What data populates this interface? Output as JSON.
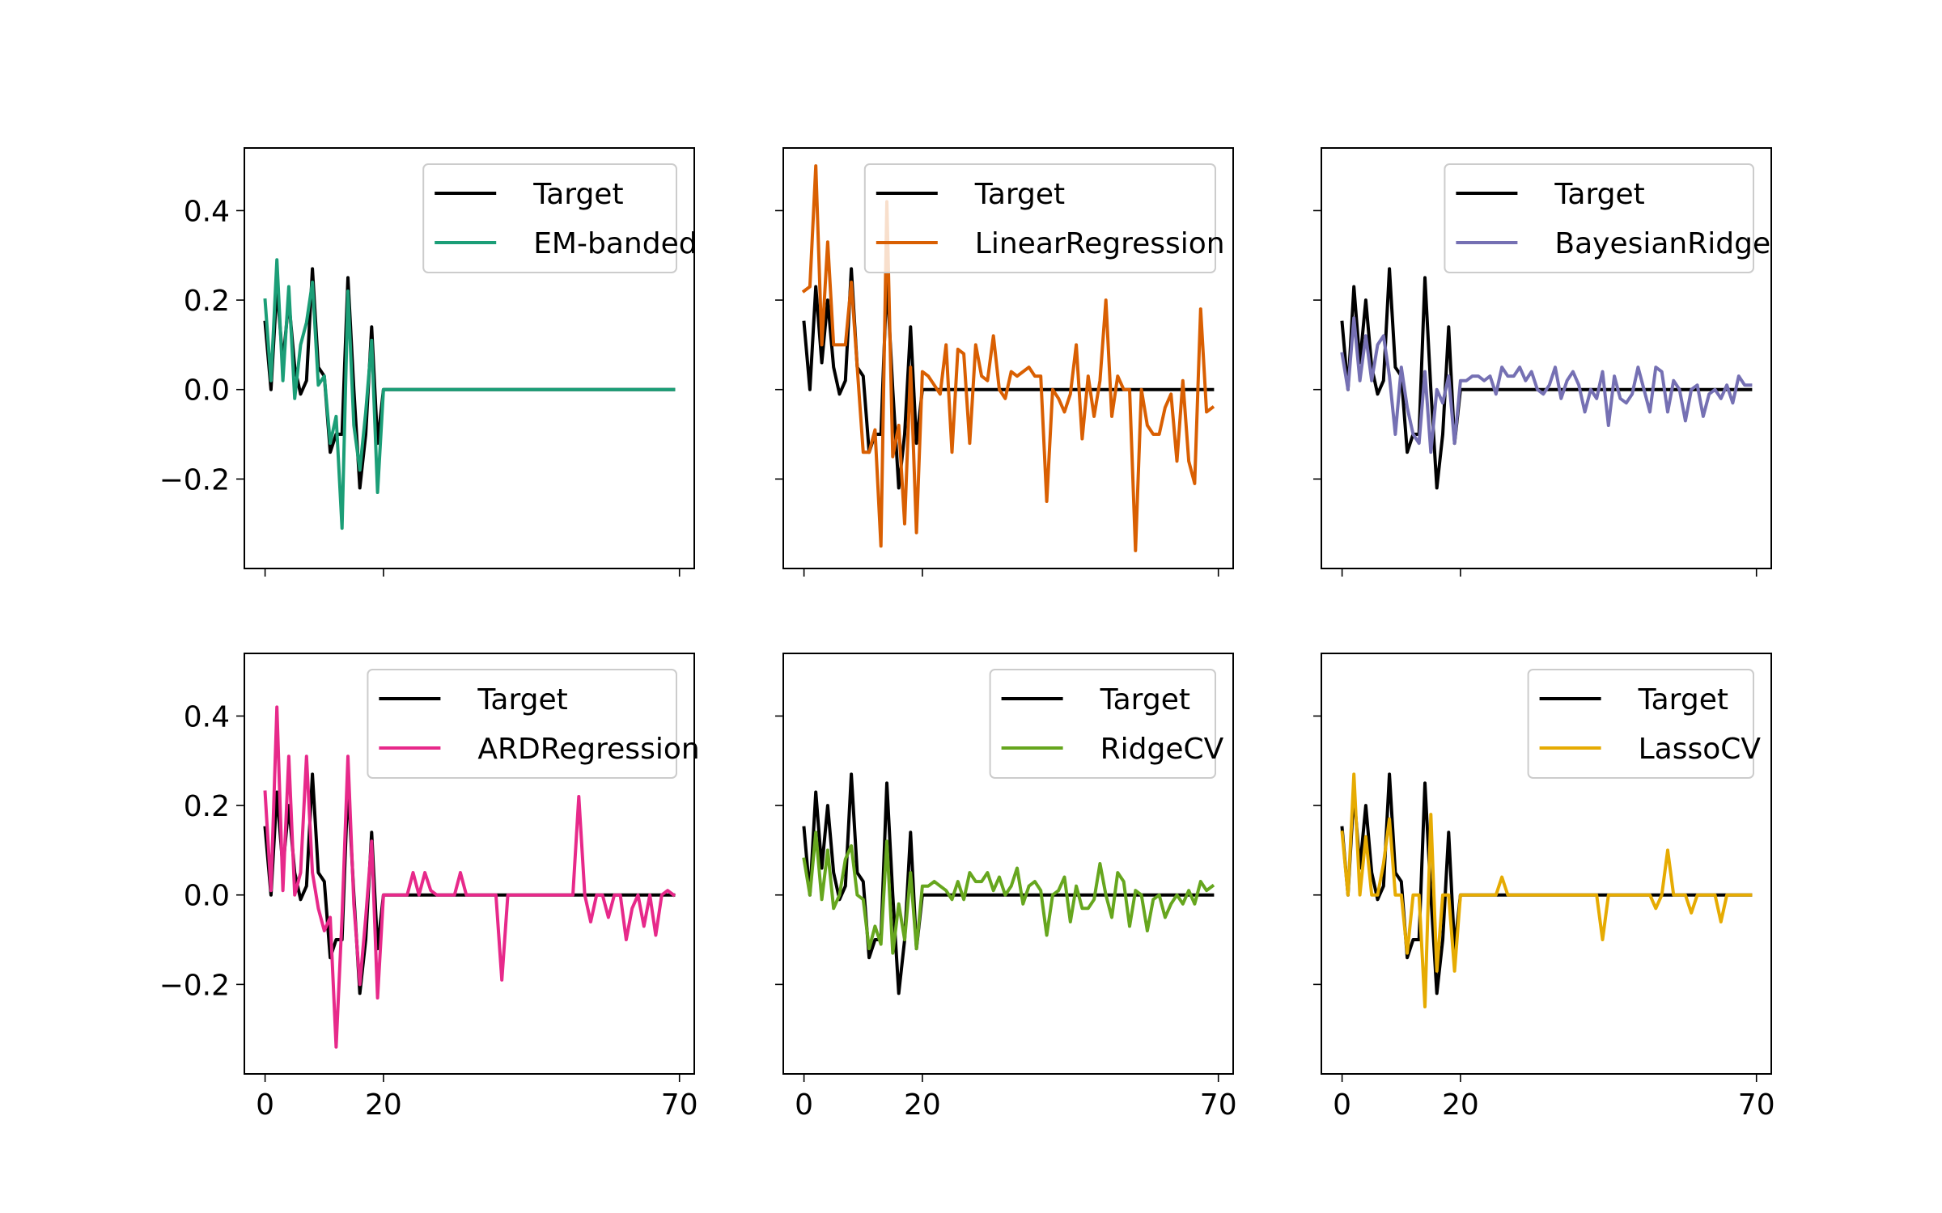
{
  "figure": {
    "colors": {
      "target": "#000000",
      "em_banded": "#1b9e77",
      "linear_regression": "#d95f02",
      "bayesian_ridge": "#7570b3",
      "ard_regression": "#e7298a",
      "ridge_cv": "#66a61e",
      "lasso_cv": "#e6ab02"
    }
  },
  "chart_data": [
    {
      "type": "line",
      "row": 0,
      "col": 0,
      "xlim": [
        -3.5,
        72.5
      ],
      "ylim": [
        -0.4,
        0.54
      ],
      "yticks": [
        -0.2,
        0.0,
        0.2,
        0.4
      ],
      "ytick_labels": [
        "−0.2",
        "0.0",
        "0.2",
        "0.4"
      ],
      "show_yticklabels": true,
      "xticks": [
        0,
        20,
        70
      ],
      "xtick_labels": [
        "0",
        "20",
        "70"
      ],
      "show_xticklabels": false,
      "legend_loc": "upper right",
      "series": [
        {
          "name": "Target",
          "color_key": "target"
        },
        {
          "name": "EM-banded",
          "color_key": "em_banded",
          "kind": "em"
        }
      ]
    },
    {
      "type": "line",
      "row": 0,
      "col": 1,
      "xlim": [
        -3.5,
        72.5
      ],
      "ylim": [
        -0.4,
        0.54
      ],
      "yticks": [
        -0.2,
        0.0,
        0.2,
        0.4
      ],
      "ytick_labels": [
        "−0.2",
        "0.0",
        "0.2",
        "0.4"
      ],
      "show_yticklabels": false,
      "xticks": [
        0,
        20,
        70
      ],
      "xtick_labels": [
        "0",
        "20",
        "70"
      ],
      "show_xticklabels": false,
      "legend_loc": "upper right",
      "series": [
        {
          "name": "Target",
          "color_key": "target"
        },
        {
          "name": "LinearRegression",
          "color_key": "linear_regression",
          "kind": "linear"
        }
      ]
    },
    {
      "type": "line",
      "row": 0,
      "col": 2,
      "xlim": [
        -3.5,
        72.5
      ],
      "ylim": [
        -0.4,
        0.54
      ],
      "yticks": [
        -0.2,
        0.0,
        0.2,
        0.4
      ],
      "ytick_labels": [
        "−0.2",
        "0.0",
        "0.2",
        "0.4"
      ],
      "show_yticklabels": false,
      "xticks": [
        0,
        20,
        70
      ],
      "xtick_labels": [
        "0",
        "20",
        "70"
      ],
      "show_xticklabels": false,
      "legend_loc": "upper right",
      "series": [
        {
          "name": "Target",
          "color_key": "target"
        },
        {
          "name": "BayesianRidge",
          "color_key": "bayesian_ridge",
          "kind": "bayes"
        }
      ]
    },
    {
      "type": "line",
      "row": 1,
      "col": 0,
      "xlim": [
        -3.5,
        72.5
      ],
      "ylim": [
        -0.4,
        0.54
      ],
      "yticks": [
        -0.2,
        0.0,
        0.2,
        0.4
      ],
      "ytick_labels": [
        "−0.2",
        "0.0",
        "0.2",
        "0.4"
      ],
      "show_yticklabels": true,
      "xticks": [
        0,
        20,
        70
      ],
      "xtick_labels": [
        "0",
        "20",
        "70"
      ],
      "show_xticklabels": true,
      "legend_loc": "upper right",
      "series": [
        {
          "name": "Target",
          "color_key": "target"
        },
        {
          "name": "ARDRegression",
          "color_key": "ard_regression",
          "kind": "ard"
        }
      ]
    },
    {
      "type": "line",
      "row": 1,
      "col": 1,
      "xlim": [
        -3.5,
        72.5
      ],
      "ylim": [
        -0.4,
        0.54
      ],
      "yticks": [
        -0.2,
        0.0,
        0.2,
        0.4
      ],
      "ytick_labels": [
        "−0.2",
        "0.0",
        "0.2",
        "0.4"
      ],
      "show_yticklabels": false,
      "xticks": [
        0,
        20,
        70
      ],
      "xtick_labels": [
        "0",
        "20",
        "70"
      ],
      "show_xticklabels": true,
      "legend_loc": "upper right",
      "series": [
        {
          "name": "Target",
          "color_key": "target"
        },
        {
          "name": "RidgeCV",
          "color_key": "ridge_cv",
          "kind": "ridge"
        }
      ]
    },
    {
      "type": "line",
      "row": 1,
      "col": 2,
      "xlim": [
        -3.5,
        72.5
      ],
      "ylim": [
        -0.4,
        0.54
      ],
      "yticks": [
        -0.2,
        0.0,
        0.2,
        0.4
      ],
      "ytick_labels": [
        "−0.2",
        "0.0",
        "0.2",
        "0.4"
      ],
      "show_yticklabels": false,
      "xticks": [
        0,
        20,
        70
      ],
      "xtick_labels": [
        "0",
        "20",
        "70"
      ],
      "show_xticklabels": true,
      "legend_loc": "upper right",
      "series": [
        {
          "name": "Target",
          "color_key": "target"
        },
        {
          "name": "LassoCV",
          "color_key": "lasso_cv",
          "kind": "lasso"
        }
      ]
    }
  ],
  "x": [
    0,
    1,
    2,
    3,
    4,
    5,
    6,
    7,
    8,
    9,
    10,
    11,
    12,
    13,
    14,
    15,
    16,
    17,
    18,
    19,
    20,
    21,
    22,
    23,
    24,
    25,
    26,
    27,
    28,
    29,
    30,
    31,
    32,
    33,
    34,
    35,
    36,
    37,
    38,
    39,
    40,
    41,
    42,
    43,
    44,
    45,
    46,
    47,
    48,
    49,
    50,
    51,
    52,
    53,
    54,
    55,
    56,
    57,
    58,
    59,
    60,
    61,
    62,
    63,
    64,
    65,
    66,
    67,
    68,
    69
  ],
  "target": [
    0.15,
    0.0,
    0.23,
    0.06,
    0.2,
    0.05,
    -0.01,
    0.02,
    0.27,
    0.05,
    0.03,
    -0.14,
    -0.1,
    -0.1,
    0.25,
    0.0,
    -0.22,
    -0.1,
    0.14,
    -0.12,
    0,
    0,
    0,
    0,
    0,
    0,
    0,
    0,
    0,
    0,
    0,
    0,
    0,
    0,
    0,
    0,
    0,
    0,
    0,
    0,
    0,
    0,
    0,
    0,
    0,
    0,
    0,
    0,
    0,
    0,
    0,
    0,
    0,
    0,
    0,
    0,
    0,
    0,
    0,
    0,
    0,
    0,
    0,
    0,
    0,
    0,
    0,
    0,
    0,
    0
  ],
  "series_values": {
    "em": [
      0.2,
      0.02,
      0.29,
      0.02,
      0.23,
      -0.02,
      0.1,
      0.15,
      0.24,
      0.01,
      0.03,
      -0.12,
      -0.06,
      -0.31,
      0.22,
      -0.08,
      -0.18,
      -0.05,
      0.11,
      -0.23,
      0,
      0,
      0,
      0,
      0,
      0,
      0,
      0,
      0,
      0,
      0,
      0,
      0,
      0,
      0,
      0,
      0,
      0,
      0,
      0,
      0,
      0,
      0,
      0,
      0,
      0,
      0,
      0,
      0,
      0,
      0,
      0,
      0,
      0,
      0,
      0,
      0,
      0,
      0,
      0,
      0,
      0,
      0,
      0,
      0,
      0,
      0,
      0,
      0,
      0
    ],
    "linear": [
      0.22,
      0.23,
      0.5,
      0.1,
      0.33,
      0.1,
      0.1,
      0.1,
      0.24,
      0.05,
      -0.14,
      -0.14,
      -0.09,
      -0.35,
      0.42,
      -0.15,
      -0.08,
      -0.3,
      0.05,
      -0.32,
      0.04,
      0.03,
      0.01,
      -0.01,
      0.1,
      -0.14,
      0.09,
      0.08,
      -0.12,
      0.1,
      0.03,
      0.02,
      0.12,
      0.0,
      -0.02,
      0.04,
      0.03,
      0.04,
      0.05,
      0.03,
      0.03,
      -0.25,
      0.0,
      -0.02,
      -0.05,
      -0.01,
      0.1,
      -0.11,
      0.03,
      -0.06,
      0.02,
      0.2,
      -0.06,
      0.03,
      0.0,
      0.0,
      -0.36,
      0.0,
      -0.08,
      -0.1,
      -0.1,
      -0.04,
      -0.01,
      -0.16,
      0.02,
      -0.16,
      -0.21,
      0.18,
      -0.05,
      -0.04
    ],
    "bayes": [
      0.08,
      0.0,
      0.16,
      0.02,
      0.12,
      0.02,
      0.1,
      0.12,
      0.03,
      -0.1,
      0.05,
      -0.04,
      -0.1,
      -0.12,
      0.04,
      -0.14,
      0.0,
      -0.03,
      0.03,
      -0.12,
      0.02,
      0.02,
      0.03,
      0.03,
      0.02,
      0.03,
      -0.01,
      0.05,
      0.03,
      0.03,
      0.05,
      0.02,
      0.04,
      0.0,
      -0.01,
      0.01,
      0.05,
      -0.02,
      0.02,
      0.04,
      0.01,
      -0.05,
      0.0,
      -0.02,
      0.04,
      -0.08,
      0.03,
      -0.02,
      -0.03,
      -0.01,
      0.05,
      0.0,
      -0.05,
      0.05,
      0.04,
      -0.05,
      0.02,
      0.0,
      -0.07,
      0.0,
      0.01,
      -0.06,
      -0.01,
      0.0,
      -0.02,
      0.01,
      -0.03,
      0.03,
      0.01,
      0.01
    ],
    "ard": [
      0.23,
      0.01,
      0.42,
      0.01,
      0.31,
      0.0,
      0.05,
      0.31,
      0.05,
      -0.03,
      -0.08,
      -0.05,
      -0.34,
      -0.05,
      0.31,
      -0.02,
      -0.2,
      -0.05,
      0.12,
      -0.23,
      0,
      0,
      0,
      0,
      0,
      0.05,
      0.0,
      0.05,
      0.01,
      0.0,
      0.0,
      0.0,
      0.0,
      0.05,
      0.0,
      0.0,
      0.0,
      0.0,
      0.0,
      0.0,
      -0.19,
      0.0,
      0.0,
      0.0,
      0.0,
      0.0,
      0.0,
      0.0,
      0.0,
      0.0,
      0.0,
      0.0,
      0.0,
      0.22,
      0.0,
      -0.06,
      0.0,
      0.0,
      -0.05,
      0.0,
      0.0,
      -0.1,
      -0.03,
      0.0,
      -0.07,
      0.0,
      -0.09,
      0.0,
      0.01,
      0.0
    ],
    "ridge": [
      0.08,
      0.0,
      0.14,
      -0.01,
      0.1,
      -0.03,
      0.0,
      0.08,
      0.11,
      0.0,
      -0.01,
      -0.12,
      -0.07,
      -0.11,
      0.12,
      -0.13,
      -0.02,
      -0.1,
      0.05,
      -0.12,
      0.02,
      0.02,
      0.03,
      0.02,
      0.01,
      -0.01,
      0.03,
      -0.01,
      0.05,
      0.03,
      0.03,
      0.05,
      0.01,
      0.04,
      0.0,
      0.02,
      0.06,
      -0.02,
      0.02,
      0.03,
      0.01,
      -0.09,
      0.0,
      0.01,
      0.04,
      -0.06,
      0.02,
      -0.03,
      -0.03,
      -0.01,
      0.07,
      0.0,
      -0.05,
      0.05,
      0.03,
      -0.07,
      0.01,
      0.0,
      -0.08,
      -0.01,
      0.0,
      -0.05,
      -0.02,
      0.0,
      -0.02,
      0.01,
      -0.02,
      0.03,
      0.01,
      0.02
    ],
    "lasso": [
      0.14,
      0.0,
      0.27,
      0.0,
      0.13,
      0.0,
      0.0,
      0.07,
      0.17,
      0.0,
      0.0,
      -0.13,
      0.0,
      0.0,
      -0.25,
      0.18,
      -0.17,
      0.0,
      0.0,
      -0.17,
      0,
      0,
      0,
      0,
      0,
      0,
      0,
      0.04,
      0.0,
      0.0,
      0.0,
      0.0,
      0.0,
      0.0,
      0.0,
      0.0,
      0.0,
      0.0,
      0.0,
      0.0,
      0.0,
      0.0,
      0.0,
      0.0,
      -0.1,
      0.0,
      0.0,
      0.0,
      0.0,
      0.0,
      0.0,
      0.0,
      0.0,
      -0.03,
      0.0,
      0.1,
      0.0,
      0.0,
      0.0,
      -0.04,
      0.0,
      0.0,
      0.0,
      0.0,
      -0.06,
      0.0,
      0.0,
      0.0,
      0.0,
      0.0
    ]
  }
}
